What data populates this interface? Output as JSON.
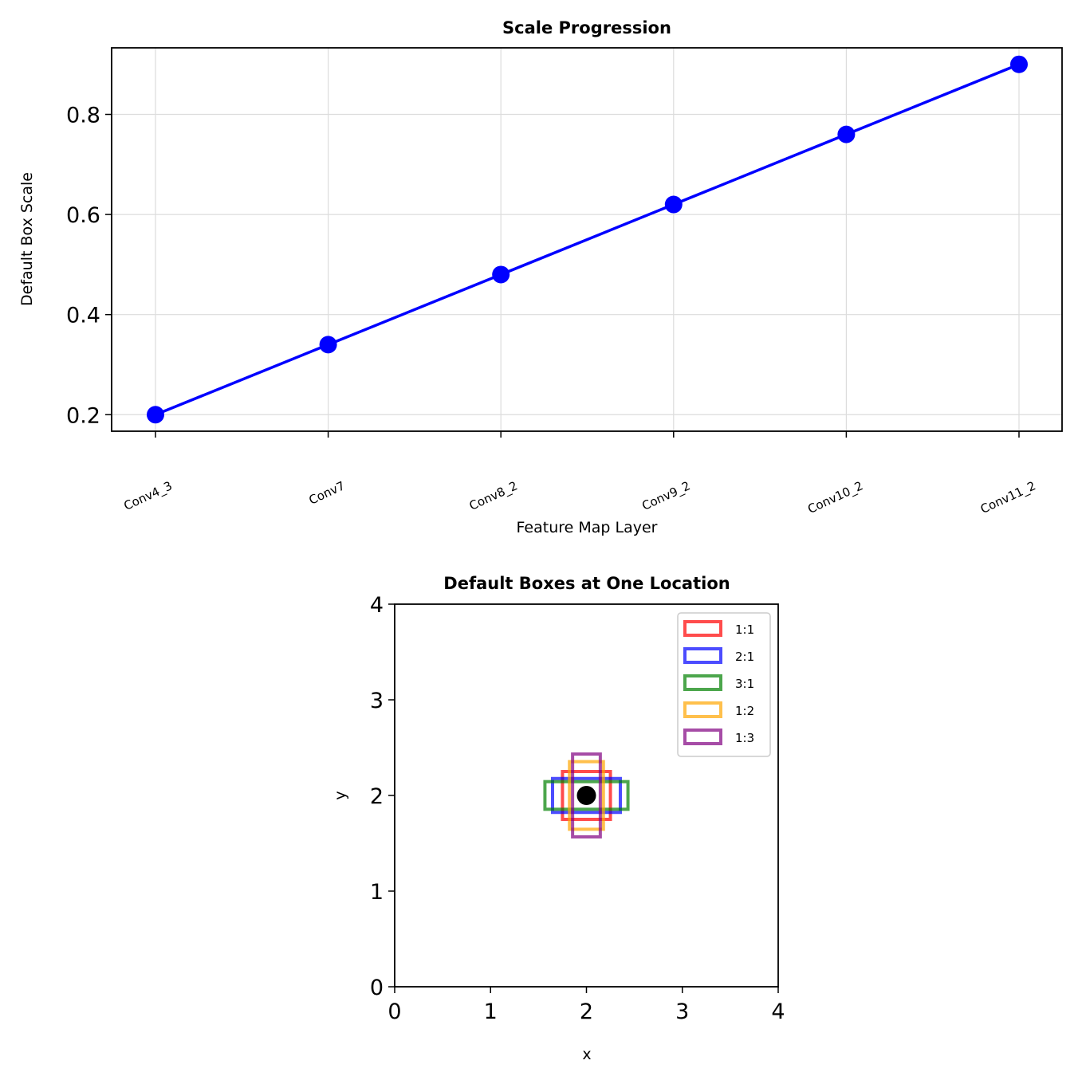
{
  "chart_data": [
    {
      "type": "line",
      "title": "Scale Progression",
      "xlabel": "Feature Map Layer",
      "ylabel": "Default Box Scale",
      "categories": [
        "Conv4_3",
        "Conv7",
        "Conv8_2",
        "Conv9_2",
        "Conv10_2",
        "Conv11_2"
      ],
      "series": [
        {
          "values": [
            0.2,
            0.34,
            0.48,
            0.62,
            0.76,
            0.9
          ],
          "color": "#0000ff",
          "marker": "circle"
        }
      ],
      "ylim": [
        0.167,
        0.933
      ],
      "yticks": [
        "0.2",
        "0.4",
        "0.6",
        "0.8"
      ],
      "grid": true
    },
    {
      "type": "scatter",
      "title": "Default Boxes at One Location",
      "xlabel": "x",
      "ylabel": "y",
      "xlim": [
        0,
        4
      ],
      "ylim": [
        0,
        4
      ],
      "xticks": [
        "0",
        "1",
        "2",
        "3",
        "4"
      ],
      "yticks": [
        "0",
        "1",
        "2",
        "3",
        "4"
      ],
      "center": {
        "x": 2,
        "y": 2,
        "color": "#000000"
      },
      "boxes": [
        {
          "name": "1:1",
          "width": 0.5,
          "height": 0.5,
          "color": "#ff0000"
        },
        {
          "name": "2:1",
          "width": 0.707,
          "height": 0.354,
          "color": "#0000ff"
        },
        {
          "name": "3:1",
          "width": 0.866,
          "height": 0.289,
          "color": "#008000"
        },
        {
          "name": "1:2",
          "width": 0.354,
          "height": 0.707,
          "color": "#ffa500"
        },
        {
          "name": "1:3",
          "width": 0.289,
          "height": 0.866,
          "color": "#800080"
        }
      ],
      "legend_position": "upper right"
    }
  ]
}
